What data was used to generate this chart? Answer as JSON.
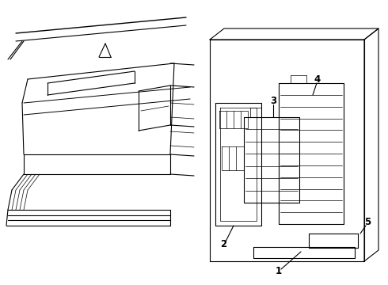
{
  "bg_color": "#ffffff",
  "line_color": "#000000",
  "lw_main": 0.8,
  "lw_thin": 0.5,
  "lw_thick": 1.0,
  "label_fontsize": 8.5,
  "fig_w": 4.9,
  "fig_h": 3.6,
  "dpi": 100
}
